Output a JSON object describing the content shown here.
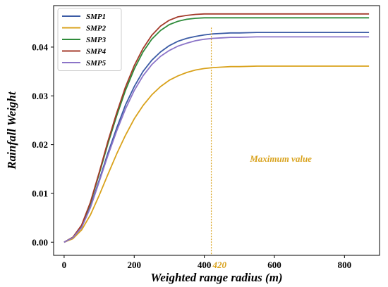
{
  "chart_data": {
    "type": "line",
    "title": "",
    "xlabel": "Weighted range radius (m)",
    "ylabel": "Rainfall Weight",
    "xlim": [
      -30,
      900
    ],
    "ylim": [
      -0.0027,
      0.0485
    ],
    "xticks": [
      0,
      200,
      400,
      600,
      800
    ],
    "xtick_labels": [
      "0",
      "200",
      "400",
      "600",
      "800"
    ],
    "yticks": [
      0.0,
      0.01,
      0.02,
      0.03,
      0.04
    ],
    "ytick_labels": [
      "0.00",
      "0.01",
      "0.02",
      "0.03",
      "0.04"
    ],
    "grid": false,
    "legend_position": "top-left",
    "x": [
      0,
      25,
      50,
      75,
      100,
      125,
      150,
      175,
      200,
      225,
      250,
      275,
      300,
      325,
      350,
      375,
      400,
      425,
      450,
      475,
      500,
      550,
      600,
      650,
      700,
      750,
      800,
      870
    ],
    "series": [
      {
        "name": "SMP1",
        "color": "#3b5ba5",
        "values": [
          0.0,
          0.0009,
          0.0031,
          0.0073,
          0.0127,
          0.0183,
          0.0234,
          0.0281,
          0.0319,
          0.035,
          0.0373,
          0.039,
          0.0403,
          0.0412,
          0.0418,
          0.0422,
          0.0425,
          0.0427,
          0.0428,
          0.0429,
          0.0429,
          0.043,
          0.043,
          0.043,
          0.043,
          0.043,
          0.043,
          0.043
        ]
      },
      {
        "name": "SMP2",
        "color": "#d9a21c",
        "values": [
          0.0,
          0.0007,
          0.0025,
          0.0056,
          0.0096,
          0.0139,
          0.0181,
          0.0219,
          0.0253,
          0.028,
          0.0302,
          0.0319,
          0.0332,
          0.0341,
          0.0348,
          0.0353,
          0.0356,
          0.0358,
          0.0359,
          0.036,
          0.036,
          0.0361,
          0.0361,
          0.0361,
          0.0361,
          0.0361,
          0.0361,
          0.0361
        ]
      },
      {
        "name": "SMP3",
        "color": "#2e8b3a",
        "values": [
          0.0,
          0.001,
          0.0034,
          0.008,
          0.014,
          0.0202,
          0.0259,
          0.0311,
          0.0355,
          0.039,
          0.0416,
          0.0434,
          0.0446,
          0.0453,
          0.0457,
          0.0459,
          0.046,
          0.046,
          0.046,
          0.046,
          0.046,
          0.046,
          0.046,
          0.046,
          0.046,
          0.046,
          0.046,
          0.046
        ]
      },
      {
        "name": "SMP4",
        "color": "#a33a2a",
        "values": [
          0.0,
          0.001,
          0.0035,
          0.0082,
          0.0143,
          0.0207,
          0.0265,
          0.0318,
          0.0362,
          0.0397,
          0.0424,
          0.0443,
          0.0455,
          0.0462,
          0.0465,
          0.0467,
          0.0468,
          0.0468,
          0.0468,
          0.0468,
          0.0468,
          0.0468,
          0.0468,
          0.0468,
          0.0468,
          0.0468,
          0.0468,
          0.0468
        ]
      },
      {
        "name": "SMP5",
        "color": "#8b74c8",
        "values": [
          0.0,
          0.0009,
          0.003,
          0.0071,
          0.0124,
          0.0178,
          0.0228,
          0.0273,
          0.0311,
          0.0341,
          0.0364,
          0.0381,
          0.0393,
          0.0402,
          0.0408,
          0.0413,
          0.0416,
          0.0418,
          0.0419,
          0.042,
          0.042,
          0.0421,
          0.0421,
          0.0421,
          0.0421,
          0.0421,
          0.0421,
          0.0421
        ]
      }
    ],
    "annotations": [
      {
        "type": "vline",
        "x": 420,
        "y_top": 0.044,
        "color": "#d9a21c",
        "label": "420"
      },
      {
        "type": "text",
        "text": "Maximum value",
        "x": 530,
        "y": 0.0165,
        "color": "#d9a21c"
      }
    ]
  }
}
